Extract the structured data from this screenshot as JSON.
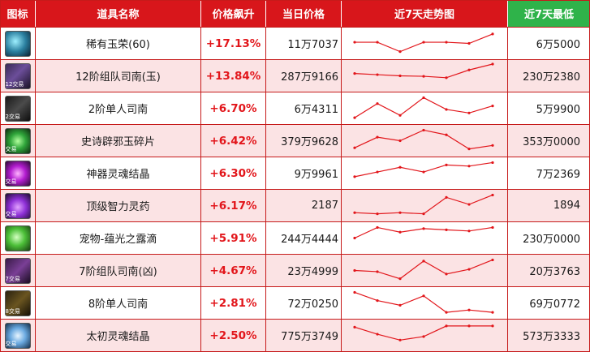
{
  "colors": {
    "header_red": "#d8161b",
    "header_green": "#2fb34a",
    "row_pink": "#fbe3e4",
    "change_red": "#e2161b",
    "trend_line": "#e2161b"
  },
  "headers": {
    "icon": "图标",
    "name": "道具名称",
    "change": "价格飙升",
    "price": "当日价格",
    "trend": "近7天走势图",
    "low": "近7天最低"
  },
  "rows": [
    {
      "icon": "jade-glory-icon",
      "icon_text": "",
      "name": "稀有玉荣(60)",
      "change": "+17.13%",
      "price": "11万7037",
      "low": "6万5000",
      "trend": [
        0.55,
        0.55,
        0.15,
        0.55,
        0.55,
        0.5,
        0.9
      ]
    },
    {
      "icon": "raid-compass-icon",
      "icon_text": "12交易",
      "name": "12阶组队司南(玉)",
      "change": "+13.84%",
      "price": "287万9166",
      "low": "230万2380",
      "trend": [
        0.6,
        0.55,
        0.5,
        0.48,
        0.42,
        0.75,
        1.0
      ]
    },
    {
      "icon": "solo-compass-icon",
      "icon_text": "2交易",
      "name": "2阶单人司南",
      "change": "+6.70%",
      "price": "6万4311",
      "low": "5万9900",
      "trend": [
        0.1,
        0.7,
        0.2,
        0.95,
        0.45,
        0.3,
        0.6
      ]
    },
    {
      "icon": "epic-shard-icon",
      "icon_text": "交易",
      "name": "史诗辟邪玉碎片",
      "change": "+6.42%",
      "price": "379万9628",
      "low": "353万0000",
      "trend": [
        0.2,
        0.65,
        0.5,
        0.95,
        0.75,
        0.15,
        0.3
      ]
    },
    {
      "icon": "soul-crystal-icon",
      "icon_text": "交易",
      "name": "神器灵魂结晶",
      "change": "+6.30%",
      "price": "9万9961",
      "low": "7万2369",
      "trend": [
        0.35,
        0.55,
        0.75,
        0.55,
        0.85,
        0.8,
        0.95
      ]
    },
    {
      "icon": "potion-icon",
      "icon_text": "交易",
      "name": "顶级智力灵药",
      "change": "+6.17%",
      "price": "2187",
      "low": "1894",
      "trend": [
        0.2,
        0.15,
        0.2,
        0.15,
        0.85,
        0.55,
        0.95
      ]
    },
    {
      "icon": "dew-drop-icon",
      "icon_text": "",
      "name": "宠物-蕴光之露滴",
      "change": "+5.91%",
      "price": "244万4444",
      "low": "230万0000",
      "trend": [
        0.5,
        0.95,
        0.75,
        0.9,
        0.85,
        0.8,
        0.95
      ]
    },
    {
      "icon": "raid-compass-evil-icon",
      "icon_text": "7交易",
      "name": "7阶组队司南(凶)",
      "change": "+4.67%",
      "price": "23万4999",
      "low": "20万3763",
      "trend": [
        0.5,
        0.45,
        0.15,
        0.9,
        0.35,
        0.55,
        0.95
      ]
    },
    {
      "icon": "solo-compass-8-icon",
      "icon_text": "8交易",
      "name": "8阶单人司南",
      "change": "+2.81%",
      "price": "72万0250",
      "low": "69万0772",
      "trend": [
        0.95,
        0.6,
        0.4,
        0.8,
        0.1,
        0.2,
        0.1
      ]
    },
    {
      "icon": "origin-crystal-icon",
      "icon_text": "交易",
      "name": "太初灵魂结晶",
      "change": "+2.50%",
      "price": "775万3749",
      "low": "573万3333",
      "trend": [
        0.85,
        0.55,
        0.3,
        0.45,
        0.9,
        0.9,
        0.9
      ]
    }
  ]
}
